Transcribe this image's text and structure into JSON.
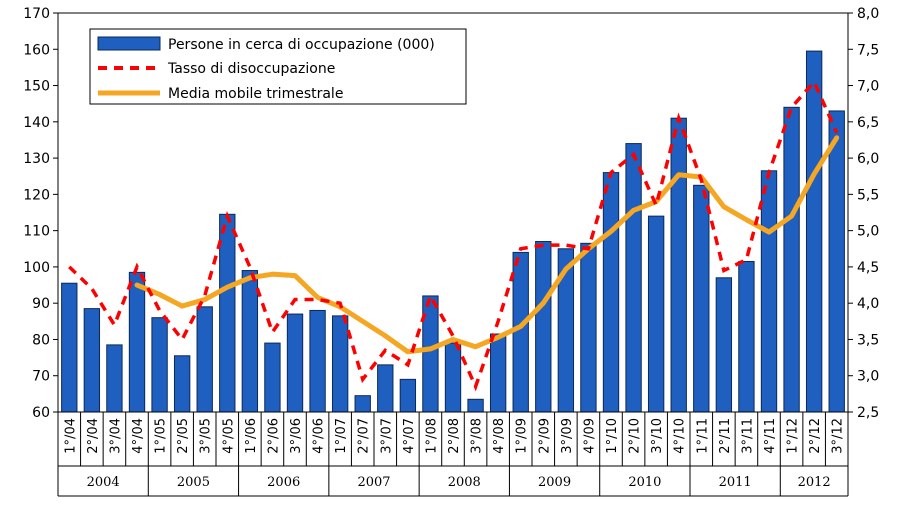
{
  "chart_data": {
    "type": "bar+line",
    "categories": [
      "1°/04",
      "2°/04",
      "3°/04",
      "4°/04",
      "1°/05",
      "2°/05",
      "3°/05",
      "4°/05",
      "1°/06",
      "2°/06",
      "3°/06",
      "4°/06",
      "1°/07",
      "2°/07",
      "3°/07",
      "4°/07",
      "1°/08",
      "2°/08",
      "3°/08",
      "4°/08",
      "1°/09",
      "2°/09",
      "3°/09",
      "4°/09",
      "1°/10",
      "2°/10",
      "3°/10",
      "4°/10",
      "1°/11",
      "2°/11",
      "3°/11",
      "4°/11",
      "1°/12",
      "2°/12",
      "3°/12"
    ],
    "years": [
      {
        "label": "2004",
        "start": 0,
        "end": 3
      },
      {
        "label": "2005",
        "start": 4,
        "end": 7
      },
      {
        "label": "2006",
        "start": 8,
        "end": 11
      },
      {
        "label": "2007",
        "start": 12,
        "end": 15
      },
      {
        "label": "2008",
        "start": 16,
        "end": 19
      },
      {
        "label": "2009",
        "start": 20,
        "end": 23
      },
      {
        "label": "2010",
        "start": 24,
        "end": 27
      },
      {
        "label": "2011",
        "start": 28,
        "end": 31
      },
      {
        "label": "2012",
        "start": 32,
        "end": 34
      }
    ],
    "series": [
      {
        "name": "Persone in cerca di occupazione (000)",
        "type": "bar",
        "axis": "left",
        "color": "#1f5fc0",
        "values": [
          95.5,
          88.5,
          78.5,
          98.5,
          86,
          75.5,
          89,
          114.5,
          99,
          79,
          87,
          88,
          86.5,
          64.5,
          73,
          69,
          92,
          79,
          63.5,
          81.5,
          104,
          107,
          105,
          106.5,
          126,
          134,
          114,
          141,
          122.5,
          97,
          101.5,
          126.5,
          144,
          159.5,
          143
        ]
      },
      {
        "name": "Tasso di disoccupazione",
        "type": "line",
        "style": "dashed",
        "axis": "right",
        "color": "#ff0000",
        "values": [
          4.5,
          4.2,
          3.7,
          4.5,
          3.9,
          3.5,
          4.1,
          5.2,
          4.5,
          3.6,
          4.05,
          4.05,
          4.0,
          2.95,
          3.35,
          3.15,
          4.1,
          3.55,
          2.85,
          3.75,
          4.75,
          4.8,
          4.8,
          4.75,
          5.8,
          6.05,
          5.35,
          6.55,
          5.7,
          4.45,
          4.6,
          5.8,
          6.7,
          7.05,
          6.35
        ]
      },
      {
        "name": "Media mobile trimestrale",
        "type": "line",
        "style": "solid",
        "axis": "right",
        "color": "#f5a623",
        "values": [
          null,
          null,
          null,
          4.25,
          4.12,
          3.96,
          4.05,
          4.22,
          4.35,
          4.4,
          4.38,
          4.08,
          3.95,
          3.75,
          3.55,
          3.33,
          3.37,
          3.5,
          3.4,
          3.53,
          3.68,
          4.0,
          4.47,
          4.75,
          4.99,
          5.28,
          5.4,
          5.77,
          5.74,
          5.33,
          5.15,
          4.98,
          5.2,
          5.78,
          6.28
        ]
      }
    ],
    "yleft": {
      "min": 60,
      "max": 170,
      "step": 10
    },
    "yright": {
      "min": 2.5,
      "max": 8.0,
      "step": 0.5
    },
    "title": "",
    "xlabel": "",
    "ylabel": "",
    "grid": false,
    "legend_position": "top-left"
  },
  "colors": {
    "bar": "#1f5fc0",
    "bar_stroke": "#0a2a5a",
    "rate_line": "#ff0000",
    "moving_average": "#f5a623"
  }
}
